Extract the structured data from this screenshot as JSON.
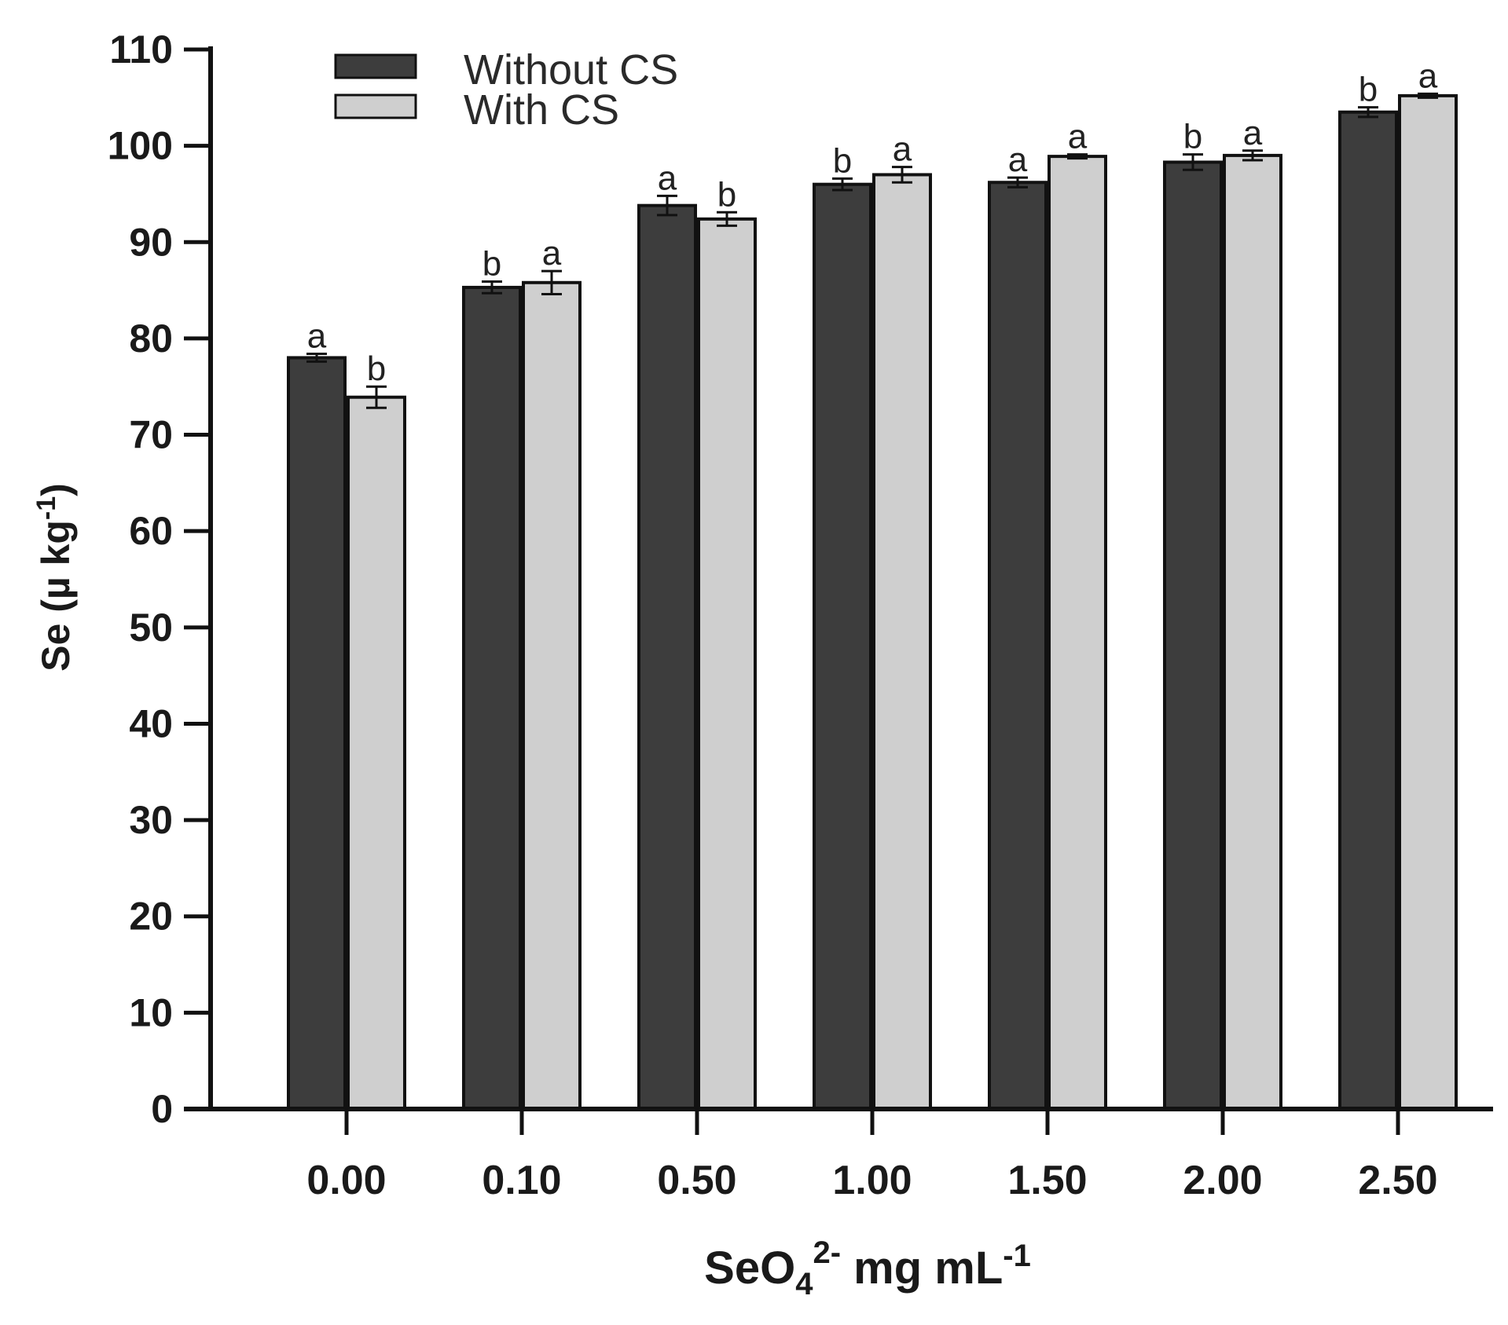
{
  "chart_data": {
    "type": "bar",
    "title": "",
    "xlabel_parts": {
      "base": "SeO",
      "sub": "4",
      "sup": "2-",
      "unit": " mg mL",
      "unit_sup": "-1"
    },
    "ylabel_parts": {
      "base": "Se (µ kg",
      "sup": "-1",
      "close": ")"
    },
    "categories": [
      "0.00",
      "0.10",
      "0.50",
      "1.00",
      "1.50",
      "2.00",
      "2.50"
    ],
    "ylim": [
      0,
      110
    ],
    "yticks": [
      0,
      10,
      20,
      30,
      40,
      50,
      60,
      70,
      80,
      90,
      100,
      110
    ],
    "grid": false,
    "legend_position": "top-left",
    "series": [
      {
        "name": "Without CS",
        "color": "#3d3d3d",
        "values": [
          78.0,
          85.3,
          93.8,
          96.0,
          96.2,
          98.3,
          103.5
        ],
        "errors": [
          0.4,
          0.6,
          1.0,
          0.6,
          0.5,
          0.8,
          0.5
        ],
        "labels": [
          "a",
          "b",
          "a",
          "b",
          "a",
          "b",
          "b"
        ]
      },
      {
        "name": "With CS",
        "color": "#cfcfcf",
        "values": [
          73.9,
          85.8,
          92.4,
          97.0,
          98.9,
          99.0,
          105.2
        ],
        "errors": [
          1.1,
          1.2,
          0.7,
          0.8,
          0.2,
          0.5,
          0.2
        ],
        "labels": [
          "b",
          "a",
          "b",
          "a",
          "a",
          "a",
          "a"
        ]
      }
    ]
  }
}
